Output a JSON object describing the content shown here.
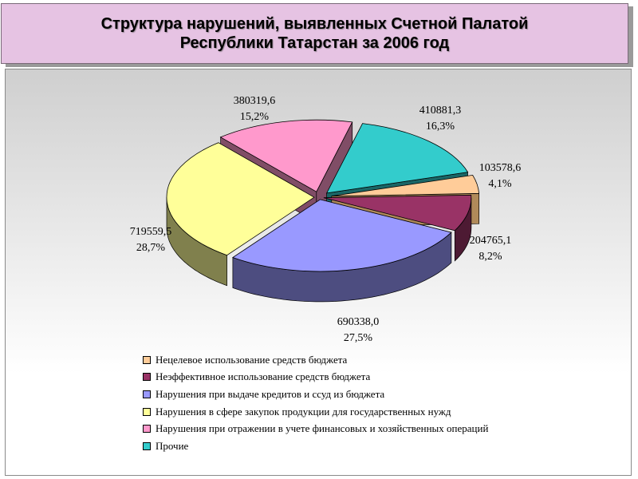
{
  "title": {
    "line1": "Структура нарушений, выявленных Счетной Палатой",
    "line2": "Республики Татарстан за 2006 год"
  },
  "chart_data": {
    "type": "pie",
    "title": "Структура нарушений, выявленных Счетной Палатой Республики Татарстан за 2006 год",
    "legend_position": "bottom",
    "slices": [
      {
        "name": "Нецелевое использование  средств бюджета",
        "value": 103578.6,
        "value_label": "103578,6",
        "percent_label": "4,1%",
        "color": "#ffcc99",
        "side": "#b08a5a"
      },
      {
        "name": "Неэффективное использование средств бюджета",
        "value": 204765.1,
        "value_label": "204765,1",
        "percent_label": "8,2%",
        "color": "#993366",
        "side": "#4d1a33"
      },
      {
        "name": "Нарушения при выдаче кредитов и ссуд из бюджета",
        "value": 690338.0,
        "value_label": "690338,0",
        "percent_label": "27,5%",
        "color": "#9999ff",
        "side": "#4d4d80"
      },
      {
        "name": "Нарушения в сфере закупок продукции для государственных нужд",
        "value": 719559.5,
        "value_label": "719559,5",
        "percent_label": "28,7%",
        "color": "#ffff99",
        "side": "#80804d"
      },
      {
        "name": "Нарушения при отражении в учете  финансовых и хозяйственных операций",
        "value": 380319.6,
        "value_label": "380319,6",
        "percent_label": "15,2%",
        "color": "#ff99cc",
        "side": "#804d66"
      },
      {
        "name": "Прочие",
        "value": 410881.3,
        "value_label": "410881,3",
        "percent_label": "16,3%",
        "color": "#33cccc",
        "side": "#1a6666"
      }
    ]
  }
}
